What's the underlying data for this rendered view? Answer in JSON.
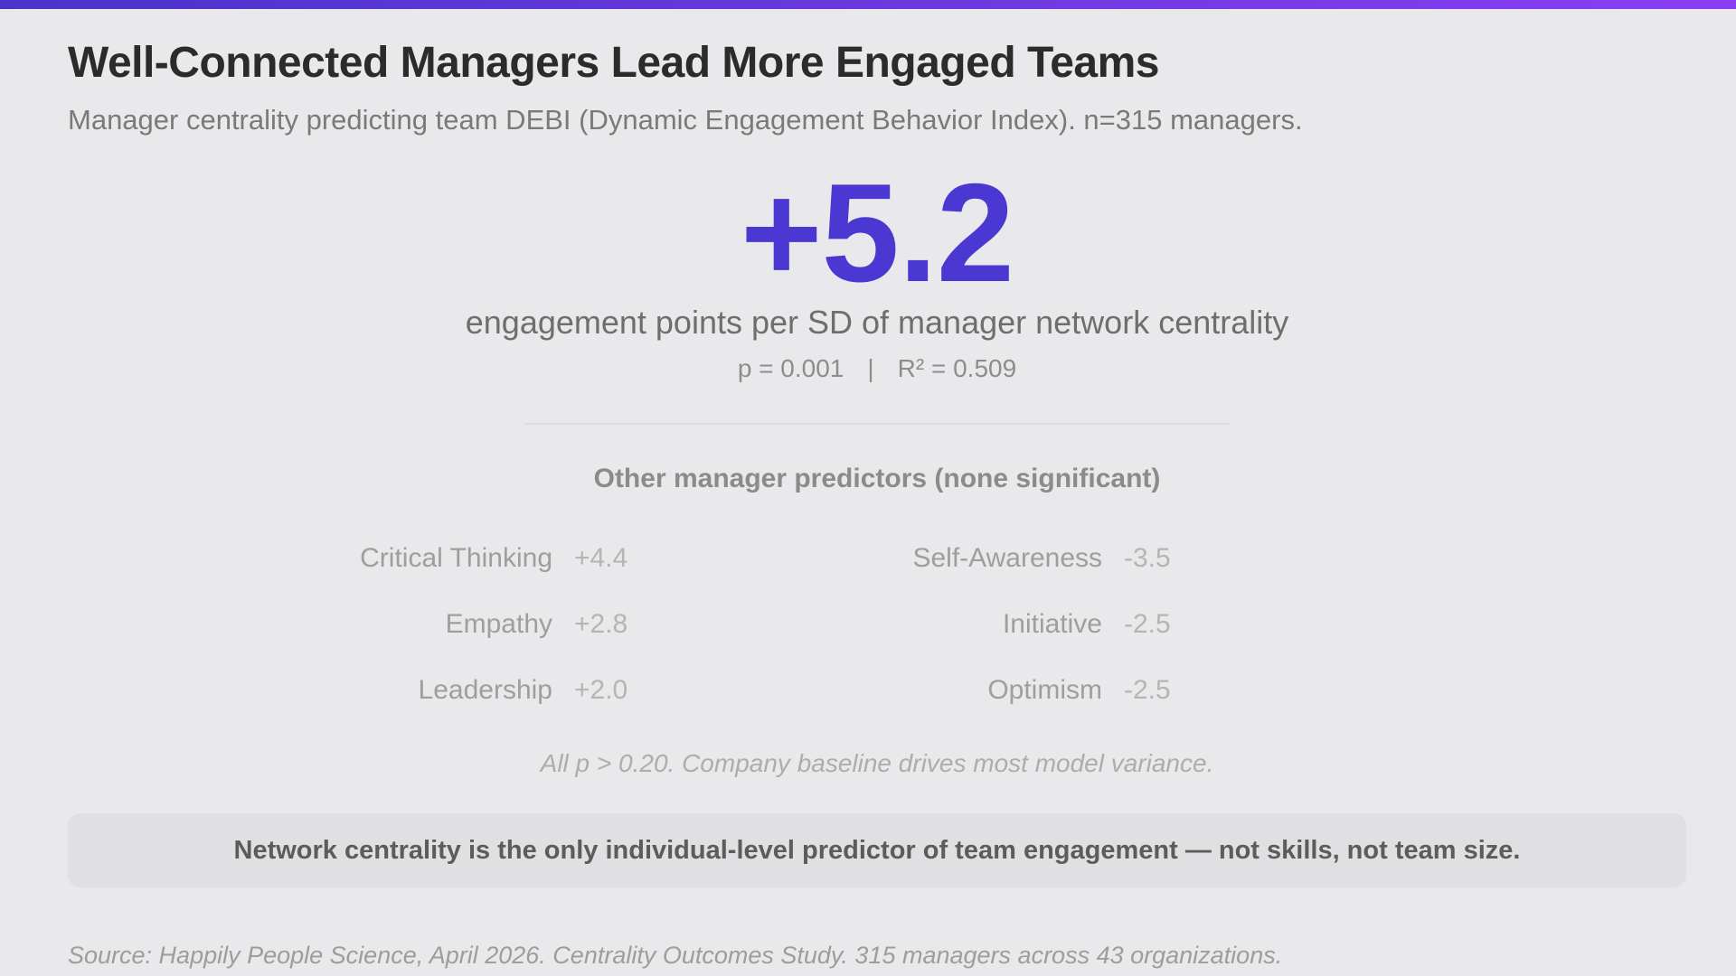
{
  "meta": {
    "accent_color": "#4b38d2",
    "topbar_gradient_start": "#4a33cb",
    "topbar_gradient_end": "#8a3ef0",
    "background_color": "#e9e8ea",
    "callout_background": "#e0dfe1"
  },
  "header": {
    "title": "Well-Connected Managers Lead More Engaged Teams",
    "subtitle": "Manager centrality predicting team DEBI (Dynamic Engagement Behavior Index). n=315 managers."
  },
  "hero": {
    "value": "+5.2",
    "unit": "engagement points per SD of manager network centrality",
    "stats": {
      "p": "p = 0.001",
      "separator": "|",
      "r2": "R² = 0.509"
    }
  },
  "predictors": {
    "heading": "Other manager predictors (none significant)",
    "items": [
      {
        "label": "Critical Thinking",
        "value": "+4.4"
      },
      {
        "label": "Empathy",
        "value": "+2.8"
      },
      {
        "label": "Leadership",
        "value": "+2.0"
      },
      {
        "label": "Self-Awareness",
        "value": "-3.5"
      },
      {
        "label": "Initiative",
        "value": "-2.5"
      },
      {
        "label": "Optimism",
        "value": "-2.5"
      }
    ],
    "note": "All p > 0.20. Company baseline drives most model variance."
  },
  "callout": {
    "text": "Network centrality is the only individual-level predictor of team engagement — not skills, not team size."
  },
  "source": {
    "text": "Source: Happily People Science, April 2026. Centrality Outcomes Study. 315 managers across 43 organizations."
  },
  "chart_data": {
    "type": "table",
    "title": "Well-Connected Managers Lead More Engaged Teams",
    "subtitle": "Manager centrality predicting team DEBI (Dynamic Engagement Behavior Index). n=315 managers.",
    "primary_effect": {
      "predictor": "Manager network centrality",
      "coefficient": 5.2,
      "unit": "engagement points per SD of manager network centrality",
      "p_value": 0.001,
      "r_squared": 0.509
    },
    "other_predictors": [
      {
        "name": "Critical Thinking",
        "coefficient": 4.4
      },
      {
        "name": "Empathy",
        "coefficient": 2.8
      },
      {
        "name": "Leadership",
        "coefficient": 2.0
      },
      {
        "name": "Self-Awareness",
        "coefficient": -3.5
      },
      {
        "name": "Initiative",
        "coefficient": -2.5
      },
      {
        "name": "Optimism",
        "coefficient": -2.5
      }
    ],
    "other_predictors_note": "All p > 0.20. Company baseline drives most model variance.",
    "n_managers": 315,
    "n_organizations": 43,
    "source": "Happily People Science, April 2026. Centrality Outcomes Study."
  }
}
